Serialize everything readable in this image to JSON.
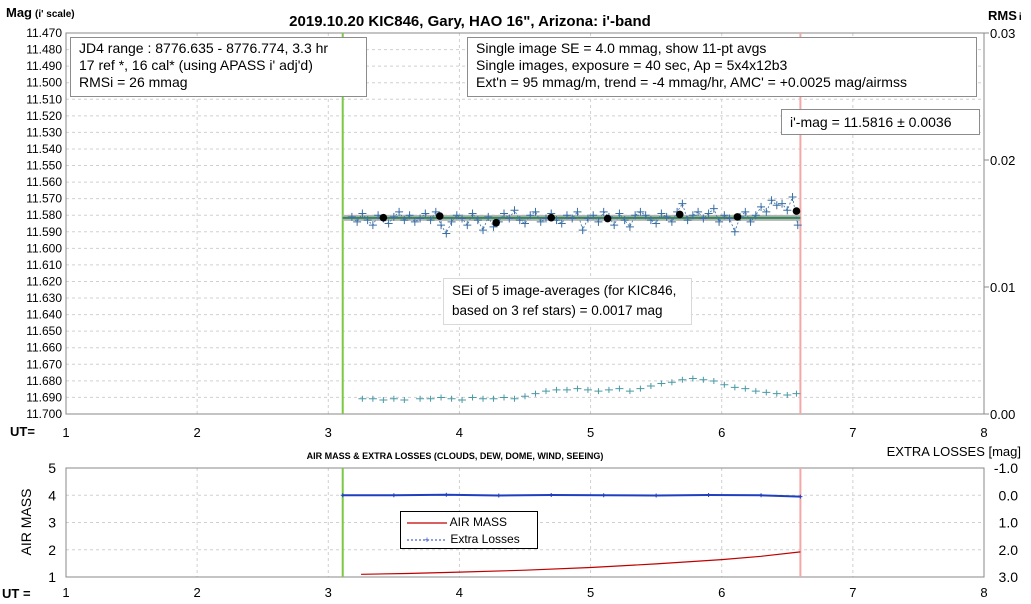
{
  "chart_data": [
    {
      "type": "scatter",
      "title": "2019.10.20 KIC846, Gary, HAO 16\", Arizona: i'-band",
      "ylabel": "Mag",
      "ylabel_note": "(i' scale)",
      "xlabel": "UT=",
      "y2label": "RMS",
      "y2label_sub": "i",
      "ylim": [
        11.47,
        11.7
      ],
      "y_inverted": true,
      "y_ticks": [
        "11.470",
        "11.480",
        "11.490",
        "11.500",
        "11.510",
        "11.520",
        "11.530",
        "11.540",
        "11.550",
        "11.560",
        "11.570",
        "11.580",
        "11.590",
        "11.600",
        "11.610",
        "11.620",
        "11.630",
        "11.640",
        "11.650",
        "11.660",
        "11.670",
        "11.680",
        "11.690",
        "11.700"
      ],
      "xlim": [
        1,
        8
      ],
      "x_ticks": [
        "1",
        "2",
        "3",
        "4",
        "5",
        "6",
        "7",
        "8"
      ],
      "y2lim": [
        0.0,
        0.03
      ],
      "y2_ticks": [
        "0.03",
        "0.02",
        "0.01",
        "0.00"
      ],
      "grid": true,
      "vertical_markers": [
        {
          "x": 3.11,
          "color": "#7ac943"
        },
        {
          "x": 6.6,
          "color": "#f4a7a7"
        }
      ],
      "fit_line": {
        "x": [
          3.11,
          6.6
        ],
        "y": 11.5816,
        "color": "#2e8b57",
        "band_color": "#b3b3b3"
      },
      "series": [
        {
          "kind": "single_images",
          "color": "#3a6ea5",
          "x": [
            3.18,
            3.22,
            3.26,
            3.3,
            3.34,
            3.38,
            3.42,
            3.46,
            3.5,
            3.54,
            3.58,
            3.62,
            3.66,
            3.7,
            3.74,
            3.78,
            3.82,
            3.86,
            3.9,
            3.94,
            3.98,
            4.02,
            4.06,
            4.1,
            4.14,
            4.18,
            4.22,
            4.26,
            4.3,
            4.34,
            4.38,
            4.42,
            4.46,
            4.5,
            4.54,
            4.58,
            4.62,
            4.66,
            4.7,
            4.74,
            4.78,
            4.82,
            4.86,
            4.9,
            4.94,
            4.98,
            5.02,
            5.06,
            5.1,
            5.14,
            5.18,
            5.22,
            5.26,
            5.3,
            5.34,
            5.38,
            5.42,
            5.46,
            5.5,
            5.54,
            5.58,
            5.62,
            5.66,
            5.7,
            5.74,
            5.78,
            5.82,
            5.86,
            5.9,
            5.94,
            5.98,
            6.02,
            6.06,
            6.1,
            6.14,
            6.18,
            6.22,
            6.26,
            6.3,
            6.34,
            6.38,
            6.42,
            6.46,
            6.5,
            6.54,
            6.58
          ],
          "y": [
            11.581,
            11.584,
            11.579,
            11.583,
            11.586,
            11.58,
            11.582,
            11.585,
            11.581,
            11.578,
            11.583,
            11.58,
            11.584,
            11.582,
            11.579,
            11.583,
            11.578,
            11.586,
            11.591,
            11.584,
            11.58,
            11.582,
            11.586,
            11.579,
            11.583,
            11.589,
            11.581,
            11.587,
            11.584,
            11.579,
            11.582,
            11.577,
            11.583,
            11.585,
            11.58,
            11.578,
            11.584,
            11.582,
            11.579,
            11.583,
            11.585,
            11.58,
            11.582,
            11.578,
            11.589,
            11.582,
            11.58,
            11.584,
            11.578,
            11.581,
            11.586,
            11.579,
            11.583,
            11.587,
            11.58,
            11.578,
            11.58,
            11.583,
            11.585,
            11.579,
            11.581,
            11.584,
            11.578,
            11.573,
            11.583,
            11.58,
            11.578,
            11.582,
            11.579,
            11.576,
            11.584,
            11.58,
            11.582,
            11.59,
            11.581,
            11.578,
            11.584,
            11.58,
            11.575,
            11.578,
            11.571,
            11.574,
            11.573,
            11.577,
            11.569,
            11.586
          ],
          "marker": "+"
        },
        {
          "kind": "image_averages",
          "color": "#000000",
          "x": [
            3.42,
            3.85,
            4.28,
            4.7,
            5.13,
            5.68,
            6.12,
            6.57
          ],
          "y": [
            11.5815,
            11.5805,
            11.5845,
            11.5815,
            11.582,
            11.5795,
            11.581,
            11.5775
          ],
          "marker": "dot"
        },
        {
          "kind": "rms",
          "color": "#4a9aa5",
          "axis": "y2",
          "x": [
            3.26,
            3.34,
            3.42,
            3.5,
            3.58,
            3.7,
            3.78,
            3.86,
            3.94,
            4.02,
            4.1,
            4.18,
            4.26,
            4.34,
            4.42,
            4.5,
            4.58,
            4.66,
            4.74,
            4.82,
            4.9,
            4.98,
            5.06,
            5.14,
            5.22,
            5.3,
            5.38,
            5.46,
            5.54,
            5.62,
            5.7,
            5.78,
            5.86,
            5.94,
            6.02,
            6.1,
            6.18,
            6.26,
            6.34,
            6.42,
            6.5,
            6.57
          ],
          "y": [
            0.0012,
            0.0012,
            0.0011,
            0.0012,
            0.0011,
            0.0012,
            0.0012,
            0.0013,
            0.0012,
            0.0011,
            0.0013,
            0.0012,
            0.0012,
            0.0013,
            0.0012,
            0.0014,
            0.0016,
            0.0018,
            0.0019,
            0.0019,
            0.002,
            0.0019,
            0.0018,
            0.0019,
            0.002,
            0.0018,
            0.002,
            0.0022,
            0.0024,
            0.0025,
            0.0027,
            0.0028,
            0.0027,
            0.0026,
            0.0023,
            0.0021,
            0.002,
            0.0018,
            0.0017,
            0.0016,
            0.0015,
            0.0016
          ],
          "marker": "+"
        }
      ],
      "annotations": {
        "box_left": [
          "JD4 range : 8776.635 - 8776.774, 3.3  hr",
          "17 ref *, 16 cal* (using APASS i' adj'd)",
          "RMSi = 26 mmag"
        ],
        "box_right": [
          "Single image SE = 4.0 mmag, show 11-pt avgs",
          "Single images, exposure = 40 sec, Ap = 5x4x12b3",
          "Ext'n = 95 mmag/m, trend = -4 mmag/hr, AMC' = +0.0025 mag/airmss"
        ],
        "box_mag": "i'-mag = 11.5816 ± 0.0036",
        "sei_text": [
          "SEi of 5 image-averages (for KIC846,",
          "based on 3 ref stars) = 0.0017 mag"
        ]
      }
    },
    {
      "type": "line",
      "title": "AIR MASS & EXTRA LOSSES (CLOUDS, DEW, DOME, WIND, SEEING)",
      "ylabel": "AIR MASS",
      "xlabel": "UT =",
      "y2label": "EXTRA LOSSES [mag]",
      "ylim": [
        1,
        5
      ],
      "y_ticks": [
        "5",
        "4",
        "3",
        "2",
        "1"
      ],
      "y2lim": [
        -1.0,
        3.0
      ],
      "y2_ticks": [
        "-1.0",
        "0.0",
        "1.0",
        "2.0",
        "3.0"
      ],
      "xlim": [
        1,
        8
      ],
      "x_ticks": [
        "1",
        "2",
        "3",
        "4",
        "5",
        "6",
        "7",
        "8"
      ],
      "grid": true,
      "legend_position": "center-left",
      "series": [
        {
          "name": "AIR MASS",
          "color": "#c00000",
          "x": [
            3.25,
            3.6,
            4.0,
            4.5,
            5.0,
            5.5,
            6.0,
            6.3,
            6.6
          ],
          "y": [
            1.1,
            1.13,
            1.18,
            1.25,
            1.35,
            1.48,
            1.64,
            1.76,
            1.92
          ]
        },
        {
          "name": "Extra Losses",
          "color": "#1f3fbf",
          "x": [
            3.11,
            3.5,
            3.9,
            4.3,
            4.7,
            5.1,
            5.5,
            5.9,
            6.3,
            6.6
          ],
          "y": [
            0.0,
            0.0,
            -0.02,
            0.01,
            -0.01,
            0.0,
            0.01,
            -0.01,
            0.0,
            0.05
          ]
        }
      ]
    }
  ]
}
